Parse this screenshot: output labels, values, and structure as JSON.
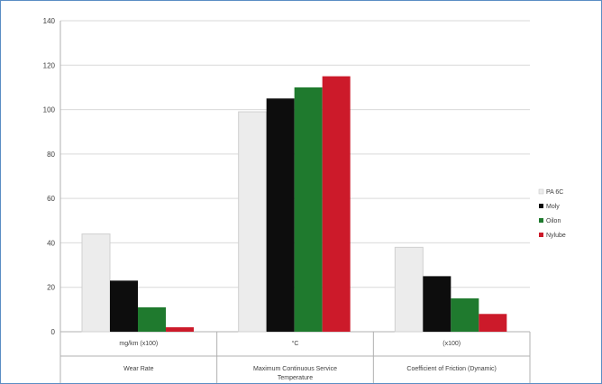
{
  "chart_data": {
    "type": "bar",
    "categories": [
      {
        "unit": "mg/km (x100)",
        "name": [
          "Wear Rate"
        ]
      },
      {
        "unit": "°C",
        "name": [
          "Maximum Continuous Service",
          "Temperature"
        ]
      },
      {
        "unit": "(x100)",
        "name": [
          "Coefficient of Friction (Dynamic)"
        ]
      }
    ],
    "series": [
      {
        "name": "PA 6C",
        "color": "#ececec",
        "values": [
          44,
          99,
          38
        ]
      },
      {
        "name": "Moly",
        "color": "#0d0d0d",
        "values": [
          23,
          105,
          25
        ]
      },
      {
        "name": "Oilon",
        "color": "#1f7a2e",
        "values": [
          11,
          110,
          15
        ]
      },
      {
        "name": "Nylube",
        "color": "#cc1a2a",
        "values": [
          2,
          115,
          8
        ]
      }
    ],
    "ylim": [
      0,
      140
    ],
    "yticks": [
      0,
      20,
      40,
      60,
      80,
      100,
      120,
      140
    ],
    "ytick_labels": [
      "0",
      "20",
      "40",
      "60",
      "80",
      "100",
      "120",
      "140"
    ],
    "grid": true,
    "legend_position": "right"
  }
}
